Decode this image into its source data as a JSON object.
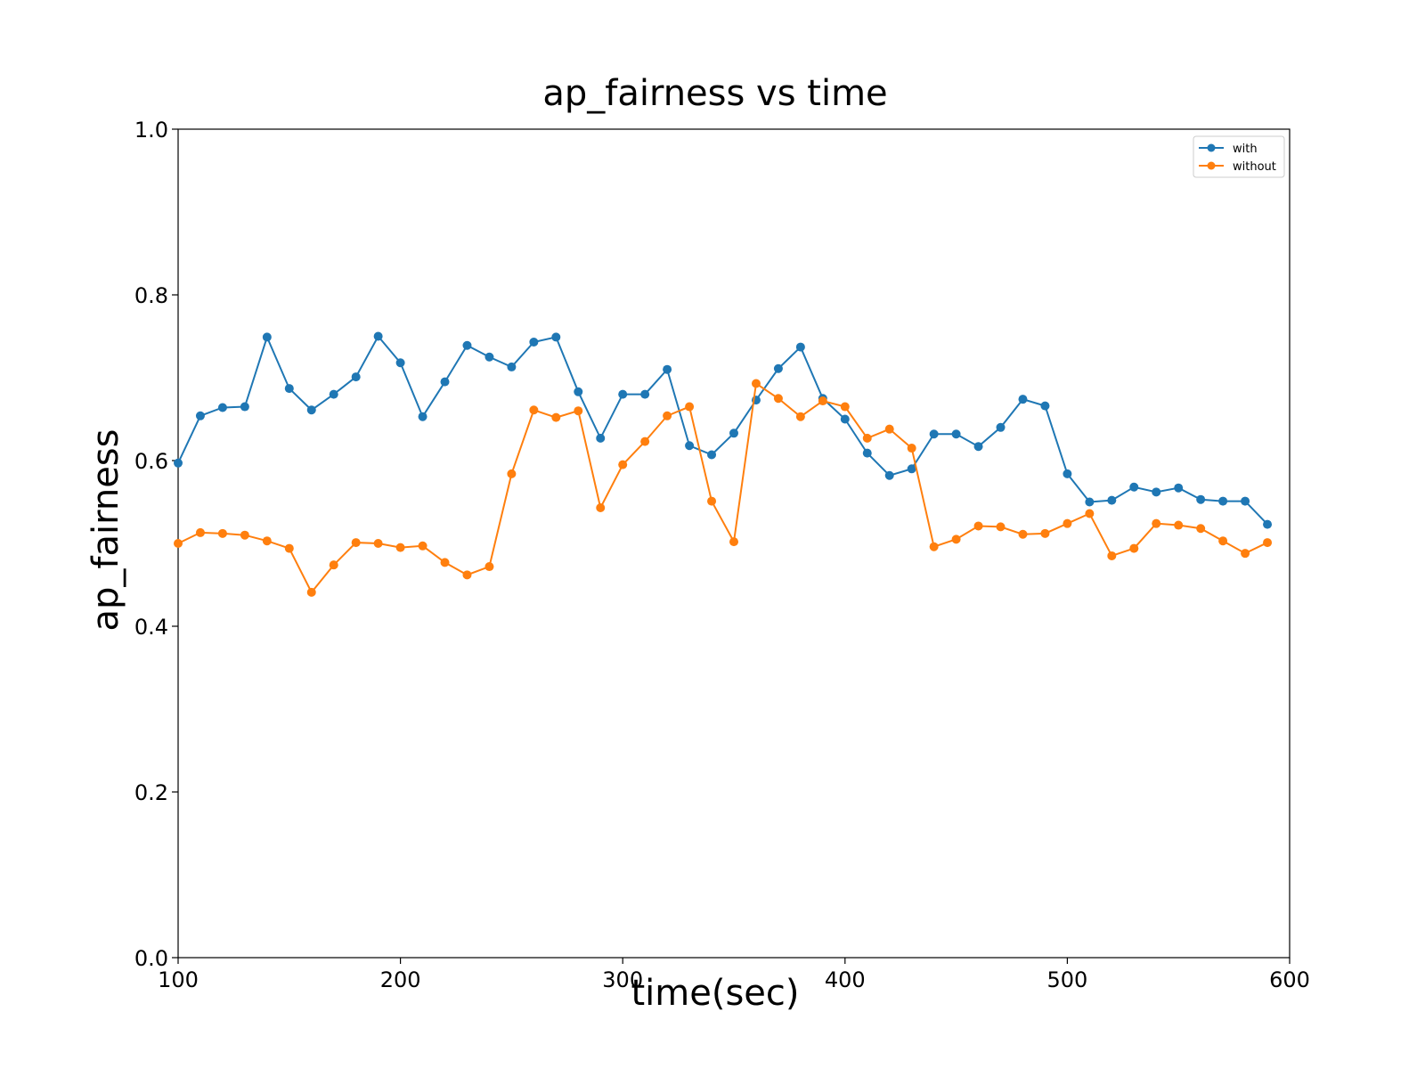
{
  "chart_data": {
    "type": "line",
    "title": "ap_fairness vs time",
    "xlabel": "time(sec)",
    "ylabel": "ap_fairness",
    "xlim": [
      100,
      600
    ],
    "ylim": [
      0.0,
      1.0
    ],
    "xticks": [
      "100",
      "200",
      "300",
      "400",
      "500",
      "600"
    ],
    "yticks": [
      "0.0",
      "0.2",
      "0.4",
      "0.6",
      "0.8",
      "1.0"
    ],
    "grid": false,
    "legend_position": "top-right",
    "x": [
      100,
      110,
      120,
      130,
      140,
      150,
      160,
      170,
      180,
      190,
      200,
      210,
      220,
      230,
      240,
      250,
      260,
      270,
      280,
      290,
      300,
      310,
      320,
      330,
      340,
      350,
      360,
      370,
      380,
      390,
      400,
      410,
      420,
      430,
      440,
      450,
      460,
      470,
      480,
      490,
      500,
      510,
      520,
      530,
      540,
      550,
      560,
      570,
      580,
      590
    ],
    "series": [
      {
        "name": "with",
        "color": "#1f77b4",
        "values": [
          0.597,
          0.654,
          0.664,
          0.665,
          0.749,
          0.687,
          0.661,
          0.68,
          0.701,
          0.75,
          0.718,
          0.653,
          0.695,
          0.739,
          0.725,
          0.713,
          0.743,
          0.749,
          0.683,
          0.627,
          0.68,
          0.68,
          0.71,
          0.618,
          0.607,
          0.633,
          0.673,
          0.711,
          0.737,
          0.675,
          0.65,
          0.609,
          0.582,
          0.59,
          0.632,
          0.632,
          0.617,
          0.64,
          0.674,
          0.666,
          0.584,
          0.55,
          0.552,
          0.568,
          0.562,
          0.567,
          0.553,
          0.551,
          0.551,
          0.523
        ]
      },
      {
        "name": "without",
        "color": "#ff7f0e",
        "values": [
          0.5,
          0.513,
          0.512,
          0.51,
          0.503,
          0.494,
          0.441,
          0.474,
          0.501,
          0.5,
          0.495,
          0.497,
          0.477,
          0.462,
          0.472,
          0.584,
          0.661,
          0.652,
          0.66,
          0.543,
          0.595,
          0.623,
          0.654,
          0.665,
          0.551,
          0.502,
          0.693,
          0.675,
          0.653,
          0.672,
          0.665,
          0.627,
          0.638,
          0.615,
          0.496,
          0.505,
          0.521,
          0.52,
          0.511,
          0.512,
          0.524,
          0.536,
          0.485,
          0.494,
          0.524,
          0.522,
          0.518,
          0.503,
          0.488,
          0.501
        ]
      }
    ]
  }
}
